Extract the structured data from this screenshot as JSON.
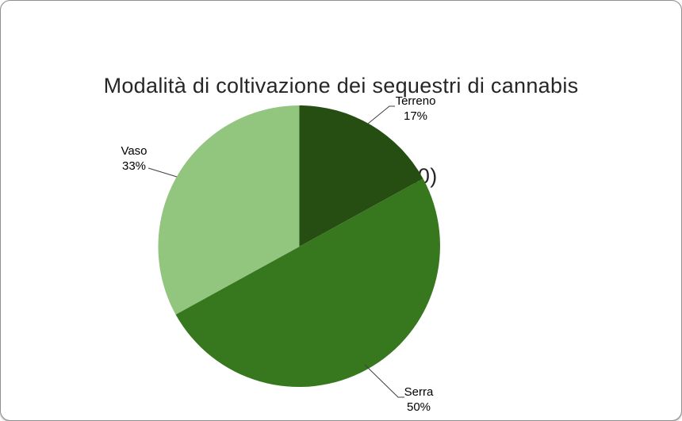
{
  "header": {
    "title_line1": "Modalità di coltivazione dei sequestri di cannabis",
    "title_line2": "(1° semestre  2020)"
  },
  "chart_data": {
    "type": "pie",
    "title": "Modalità di coltivazione dei sequestri di cannabis (1° semestre 2020)",
    "categories": [
      "Terreno",
      "Serra",
      "Vaso"
    ],
    "values": [
      17,
      50,
      33
    ],
    "slices": [
      {
        "label": "Terreno",
        "value": 17,
        "pct_label": "17%",
        "color": "#274e12"
      },
      {
        "label": "Serra",
        "value": 50,
        "pct_label": "50%",
        "color": "#37781e"
      },
      {
        "label": "Vaso",
        "value": 33,
        "pct_label": "33%",
        "color": "#92c57d"
      }
    ],
    "start_angle_deg": 0,
    "direction": "clockwise",
    "legend": "none",
    "label_style": "outside-with-leader-lines",
    "frame_border_color": "#8f8f8f",
    "background_color": "#ffffff",
    "leader_line_color": "#3f3f3f"
  }
}
